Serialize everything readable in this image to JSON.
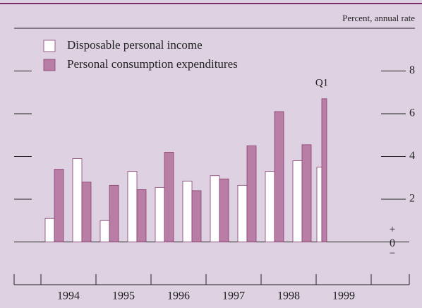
{
  "chart_data": {
    "type": "bar",
    "unit_label": "Percent, annual rate",
    "categories": [
      null,
      null,
      null,
      null,
      null,
      null,
      null,
      null,
      null,
      null,
      "Q1"
    ],
    "year_labels": [
      "1994",
      "1995",
      "1996",
      "1997",
      "1998",
      "1999"
    ],
    "series": [
      {
        "name": "Disposable personal income",
        "color": "#ffffff",
        "values": [
          1.1,
          3.9,
          1.0,
          3.3,
          2.55,
          2.85,
          3.1,
          2.65,
          3.3,
          3.8,
          3.5
        ]
      },
      {
        "name": "Personal consumption expenditures",
        "color": "#b97ea5",
        "values": [
          3.4,
          2.8,
          2.65,
          2.45,
          4.2,
          2.4,
          2.95,
          4.5,
          6.1,
          4.55,
          6.7
        ]
      }
    ],
    "ylim": [
      -2,
      10
    ],
    "yticks": [
      0,
      2,
      4,
      6,
      8
    ],
    "sign_labels": {
      "above": "+",
      "below": "−"
    }
  }
}
